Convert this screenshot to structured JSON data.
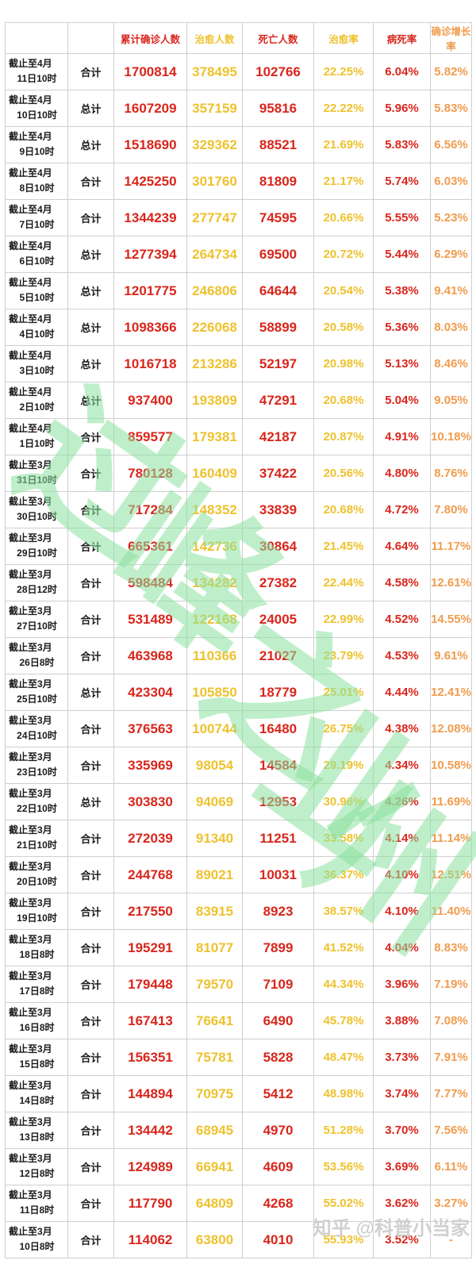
{
  "colors": {
    "red": "#d9261c",
    "gold": "#eec22e",
    "orange": "#f09c4e",
    "green": "#8ce2a0",
    "grid": "#cfcfcf",
    "text": "#1a1a1a",
    "credit": "#cbcbcb"
  },
  "chart_data": {
    "type": "table",
    "title": "",
    "columns": [
      {
        "key": "date",
        "label": "",
        "color": "text"
      },
      {
        "key": "label",
        "label": "",
        "color": "text"
      },
      {
        "key": "confirmed",
        "label": "累计确诊人数",
        "color": "red"
      },
      {
        "key": "cured",
        "label": "治愈人数",
        "color": "gold"
      },
      {
        "key": "deaths",
        "label": "死亡人数",
        "color": "red"
      },
      {
        "key": "cure_rate",
        "label": "治愈率",
        "color": "gold"
      },
      {
        "key": "fatality_rate",
        "label": "病死率",
        "color": "red"
      },
      {
        "key": "growth_rate",
        "label": "确诊增长率",
        "color": "orange"
      }
    ],
    "rows": [
      {
        "d1": "截止至4月",
        "d2": "11日10时",
        "label": "合计",
        "confirmed": "1700814",
        "cured": "378495",
        "deaths": "102766",
        "cure_rate": "22.25%",
        "fatality_rate": "6.04%",
        "growth_rate": "5.82%"
      },
      {
        "d1": "截止至4月",
        "d2": "10日10时",
        "label": "总计",
        "confirmed": "1607209",
        "cured": "357159",
        "deaths": "95816",
        "cure_rate": "22.22%",
        "fatality_rate": "5.96%",
        "growth_rate": "5.83%"
      },
      {
        "d1": "截止至4月",
        "d2": "9日10时",
        "label": "总计",
        "confirmed": "1518690",
        "cured": "329362",
        "deaths": "88521",
        "cure_rate": "21.69%",
        "fatality_rate": "5.83%",
        "growth_rate": "6.56%"
      },
      {
        "d1": "截止至4月",
        "d2": "8日10时",
        "label": "合计",
        "confirmed": "1425250",
        "cured": "301760",
        "deaths": "81809",
        "cure_rate": "21.17%",
        "fatality_rate": "5.74%",
        "growth_rate": "6.03%"
      },
      {
        "d1": "截止至4月",
        "d2": "7日10时",
        "label": "合计",
        "confirmed": "1344239",
        "cured": "277747",
        "deaths": "74595",
        "cure_rate": "20.66%",
        "fatality_rate": "5.55%",
        "growth_rate": "5.23%"
      },
      {
        "d1": "截止至4月",
        "d2": "6日10时",
        "label": "总计",
        "confirmed": "1277394",
        "cured": "264734",
        "deaths": "69500",
        "cure_rate": "20.72%",
        "fatality_rate": "5.44%",
        "growth_rate": "6.29%"
      },
      {
        "d1": "截止至4月",
        "d2": "5日10时",
        "label": "总计",
        "confirmed": "1201775",
        "cured": "246806",
        "deaths": "64644",
        "cure_rate": "20.54%",
        "fatality_rate": "5.38%",
        "growth_rate": "9.41%"
      },
      {
        "d1": "截止至4月",
        "d2": "4日10时",
        "label": "总计",
        "confirmed": "1098366",
        "cured": "226068",
        "deaths": "58899",
        "cure_rate": "20.58%",
        "fatality_rate": "5.36%",
        "growth_rate": "8.03%"
      },
      {
        "d1": "截止至4月",
        "d2": "3日10时",
        "label": "总计",
        "confirmed": "1016718",
        "cured": "213286",
        "deaths": "52197",
        "cure_rate": "20.98%",
        "fatality_rate": "5.13%",
        "growth_rate": "8.46%"
      },
      {
        "d1": "截止至4月",
        "d2": "2日10时",
        "label": "总计",
        "confirmed": "937400",
        "cured": "193809",
        "deaths": "47291",
        "cure_rate": "20.68%",
        "fatality_rate": "5.04%",
        "growth_rate": "9.05%"
      },
      {
        "d1": "截止至4月",
        "d2": "1日10时",
        "label": "合计",
        "confirmed": "859577",
        "cured": "179381",
        "deaths": "42187",
        "cure_rate": "20.87%",
        "fatality_rate": "4.91%",
        "growth_rate": "10.18%"
      },
      {
        "d1": "截止至3月",
        "d2": "31日10时",
        "label": "合计",
        "confirmed": "780128",
        "cured": "160409",
        "deaths": "37422",
        "cure_rate": "20.56%",
        "fatality_rate": "4.80%",
        "growth_rate": "8.76%"
      },
      {
        "d1": "截止至3月",
        "d2": "30日10时",
        "label": "合计",
        "confirmed": "717284",
        "cured": "148352",
        "deaths": "33839",
        "cure_rate": "20.68%",
        "fatality_rate": "4.72%",
        "growth_rate": "7.80%"
      },
      {
        "d1": "截止至3月",
        "d2": "29日10时",
        "label": "合计",
        "confirmed": "665361",
        "cured": "142736",
        "deaths": "30864",
        "cure_rate": "21.45%",
        "fatality_rate": "4.64%",
        "growth_rate": "11.17%"
      },
      {
        "d1": "截止至3月",
        "d2": "28日12时",
        "label": "合计",
        "confirmed": "598484",
        "cured": "134282",
        "deaths": "27382",
        "cure_rate": "22.44%",
        "fatality_rate": "4.58%",
        "growth_rate": "12.61%"
      },
      {
        "d1": "截止至3月",
        "d2": "27日10时",
        "label": "合计",
        "confirmed": "531489",
        "cured": "122168",
        "deaths": "24005",
        "cure_rate": "22.99%",
        "fatality_rate": "4.52%",
        "growth_rate": "14.55%"
      },
      {
        "d1": "截止至3月",
        "d2": "26日8时",
        "label": "合计",
        "confirmed": "463968",
        "cured": "110366",
        "deaths": "21027",
        "cure_rate": "23.79%",
        "fatality_rate": "4.53%",
        "growth_rate": "9.61%"
      },
      {
        "d1": "截止至3月",
        "d2": "25日10时",
        "label": "总计",
        "confirmed": "423304",
        "cured": "105850",
        "deaths": "18779",
        "cure_rate": "25.01%",
        "fatality_rate": "4.44%",
        "growth_rate": "12.41%"
      },
      {
        "d1": "截止至3月",
        "d2": "24日10时",
        "label": "合计",
        "confirmed": "376563",
        "cured": "100744",
        "deaths": "16480",
        "cure_rate": "26.75%",
        "fatality_rate": "4.38%",
        "growth_rate": "12.08%"
      },
      {
        "d1": "截止至3月",
        "d2": "23日10时",
        "label": "合计",
        "confirmed": "335969",
        "cured": "98054",
        "deaths": "14584",
        "cure_rate": "29.19%",
        "fatality_rate": "4.34%",
        "growth_rate": "10.58%"
      },
      {
        "d1": "截止至3月",
        "d2": "22日10时",
        "label": "总计",
        "confirmed": "303830",
        "cured": "94069",
        "deaths": "12953",
        "cure_rate": "30.96%",
        "fatality_rate": "4.26%",
        "growth_rate": "11.69%"
      },
      {
        "d1": "截止至3月",
        "d2": "21日10时",
        "label": "合计",
        "confirmed": "272039",
        "cured": "91340",
        "deaths": "11251",
        "cure_rate": "33.58%",
        "fatality_rate": "4.14%",
        "growth_rate": "11.14%"
      },
      {
        "d1": "截止至3月",
        "d2": "20日10时",
        "label": "合计",
        "confirmed": "244768",
        "cured": "89021",
        "deaths": "10031",
        "cure_rate": "36.37%",
        "fatality_rate": "4.10%",
        "growth_rate": "12.51%"
      },
      {
        "d1": "截止至3月",
        "d2": "19日10时",
        "label": "合计",
        "confirmed": "217550",
        "cured": "83915",
        "deaths": "8923",
        "cure_rate": "38.57%",
        "fatality_rate": "4.10%",
        "growth_rate": "11.40%"
      },
      {
        "d1": "截止至3月",
        "d2": "18日8时",
        "label": "合计",
        "confirmed": "195291",
        "cured": "81077",
        "deaths": "7899",
        "cure_rate": "41.52%",
        "fatality_rate": "4.04%",
        "growth_rate": "8.83%"
      },
      {
        "d1": "截止至3月",
        "d2": "17日8时",
        "label": "合计",
        "confirmed": "179448",
        "cured": "79570",
        "deaths": "7109",
        "cure_rate": "44.34%",
        "fatality_rate": "3.96%",
        "growth_rate": "7.19%"
      },
      {
        "d1": "截止至3月",
        "d2": "16日8时",
        "label": "合计",
        "confirmed": "167413",
        "cured": "76641",
        "deaths": "6490",
        "cure_rate": "45.78%",
        "fatality_rate": "3.88%",
        "growth_rate": "7.08%"
      },
      {
        "d1": "截止至3月",
        "d2": "15日8时",
        "label": "合计",
        "confirmed": "156351",
        "cured": "75781",
        "deaths": "5828",
        "cure_rate": "48.47%",
        "fatality_rate": "3.73%",
        "growth_rate": "7.91%"
      },
      {
        "d1": "截止至3月",
        "d2": "14日8时",
        "label": "合计",
        "confirmed": "144894",
        "cured": "70975",
        "deaths": "5412",
        "cure_rate": "48.98%",
        "fatality_rate": "3.74%",
        "growth_rate": "7.77%"
      },
      {
        "d1": "截止至3月",
        "d2": "13日8时",
        "label": "合计",
        "confirmed": "134442",
        "cured": "68945",
        "deaths": "4970",
        "cure_rate": "51.28%",
        "fatality_rate": "3.70%",
        "growth_rate": "7.56%"
      },
      {
        "d1": "截止至3月",
        "d2": "12日8时",
        "label": "合计",
        "confirmed": "124989",
        "cured": "66941",
        "deaths": "4609",
        "cure_rate": "53.56%",
        "fatality_rate": "3.69%",
        "growth_rate": "6.11%"
      },
      {
        "d1": "截止至3月",
        "d2": "11日8时",
        "label": "合计",
        "confirmed": "117790",
        "cured": "64809",
        "deaths": "4268",
        "cure_rate": "55.02%",
        "fatality_rate": "3.62%",
        "growth_rate": "3.27%"
      },
      {
        "d1": "截止至3月",
        "d2": "10日8时",
        "label": "合计",
        "confirmed": "114062",
        "cured": "63800",
        "deaths": "4010",
        "cure_rate": "55.93%",
        "fatality_rate": "3.52%",
        "growth_rate": "-"
      }
    ]
  },
  "watermark": {
    "characters": [
      "过",
      "峰",
      "之",
      "业",
      "州"
    ]
  },
  "credit": {
    "text": "知乎 @科普小当家"
  }
}
